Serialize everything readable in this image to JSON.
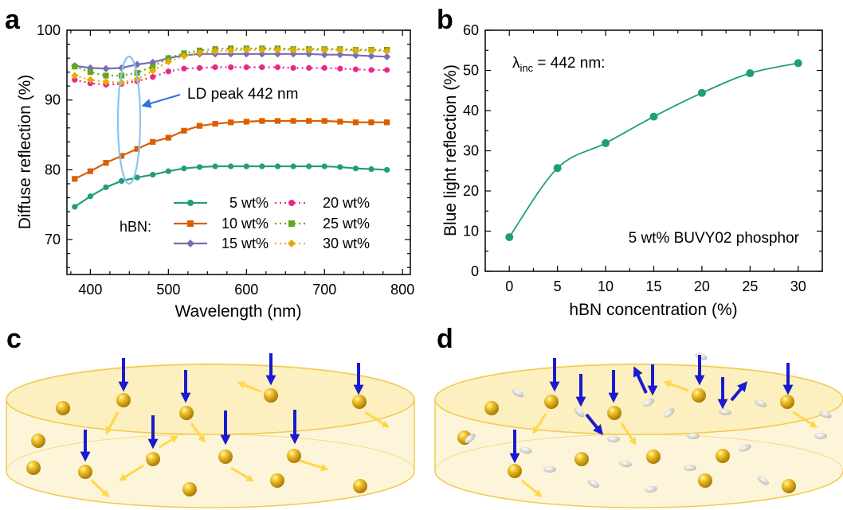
{
  "panels": {
    "a": "a",
    "b": "b",
    "c": "c",
    "d": "d"
  },
  "chart_data": [
    {
      "type": "line",
      "panel": "a",
      "xlabel": "Wavelength (nm)",
      "ylabel": "Diffuse reflection (%)",
      "xlim": [
        370,
        810
      ],
      "ylim": [
        65,
        100
      ],
      "xticks": [
        400,
        500,
        600,
        700,
        800
      ],
      "yticks": [
        70,
        80,
        90,
        100
      ],
      "legend_title": "hBN:",
      "annotation": "LD peak 442 nm",
      "x": [
        380,
        400,
        420,
        440,
        460,
        480,
        500,
        520,
        540,
        560,
        580,
        600,
        620,
        640,
        660,
        680,
        700,
        720,
        740,
        760,
        780
      ],
      "series": [
        {
          "name": "5 wt%",
          "color": "#1f9e77",
          "marker": "circle",
          "dash": "solid",
          "values": [
            74.7,
            76.2,
            77.5,
            78.4,
            78.9,
            79.3,
            79.8,
            80.2,
            80.4,
            80.5,
            80.5,
            80.5,
            80.5,
            80.5,
            80.5,
            80.5,
            80.5,
            80.4,
            80.2,
            80.1,
            80.0
          ]
        },
        {
          "name": "10 wt%",
          "color": "#d95f02",
          "marker": "square",
          "dash": "solid",
          "values": [
            78.7,
            79.8,
            81.0,
            82.0,
            83.0,
            84.0,
            84.6,
            85.6,
            86.3,
            86.6,
            86.8,
            86.9,
            87.0,
            87.0,
            87.0,
            87.0,
            87.0,
            86.9,
            86.8,
            86.8,
            86.8
          ]
        },
        {
          "name": "15 wt%",
          "color": "#7570b3",
          "marker": "diamond",
          "dash": "solid",
          "values": [
            94.9,
            94.6,
            94.5,
            94.6,
            95.1,
            95.4,
            96.0,
            96.4,
            96.6,
            96.6,
            96.6,
            96.6,
            96.6,
            96.6,
            96.6,
            96.6,
            96.5,
            96.5,
            96.4,
            96.3,
            96.2
          ]
        },
        {
          "name": "20 wt%",
          "color": "#e7298a",
          "marker": "circle",
          "dash": "dotted",
          "values": [
            92.9,
            92.4,
            92.2,
            92.3,
            92.7,
            93.3,
            94.1,
            94.5,
            94.6,
            94.7,
            94.7,
            94.7,
            94.7,
            94.7,
            94.6,
            94.6,
            94.6,
            94.5,
            94.4,
            94.3,
            94.3
          ]
        },
        {
          "name": "25 wt%",
          "color": "#66a61e",
          "marker": "square",
          "dash": "dotted",
          "values": [
            94.8,
            94.0,
            93.5,
            93.5,
            93.9,
            94.8,
            96.0,
            96.7,
            97.1,
            97.3,
            97.4,
            97.4,
            97.4,
            97.4,
            97.3,
            97.3,
            97.3,
            97.3,
            97.2,
            97.2,
            97.2
          ]
        },
        {
          "name": "30 wt%",
          "color": "#e6ab02",
          "marker": "diamond",
          "dash": "dotted",
          "values": [
            93.5,
            92.9,
            92.6,
            92.5,
            93.0,
            94.2,
            95.5,
            96.3,
            96.8,
            97.0,
            97.1,
            97.2,
            97.2,
            97.2,
            97.2,
            97.2,
            97.2,
            97.2,
            97.1,
            97.1,
            97.0
          ]
        }
      ]
    },
    {
      "type": "line",
      "panel": "b",
      "xlabel": "hBN concentration (%)",
      "ylabel": "Blue light reflection (%)",
      "xlim": [
        -2.5,
        32.5
      ],
      "ylim": [
        0,
        60
      ],
      "xticks": [
        0,
        5,
        10,
        15,
        20,
        25,
        30
      ],
      "yticks": [
        0,
        10,
        20,
        30,
        40,
        50,
        60
      ],
      "annotation_main": "λ",
      "annotation_sub": "inc",
      "annotation_rest": " = 442 nm:",
      "annotation2": "5 wt% BUVY02 phosphor",
      "series": [
        {
          "color": "#1f9e77",
          "x": [
            0,
            5,
            10,
            15,
            20,
            25,
            30
          ],
          "values": [
            8.5,
            25.7,
            31.9,
            38.5,
            44.4,
            49.3,
            51.8
          ]
        }
      ]
    }
  ]
}
